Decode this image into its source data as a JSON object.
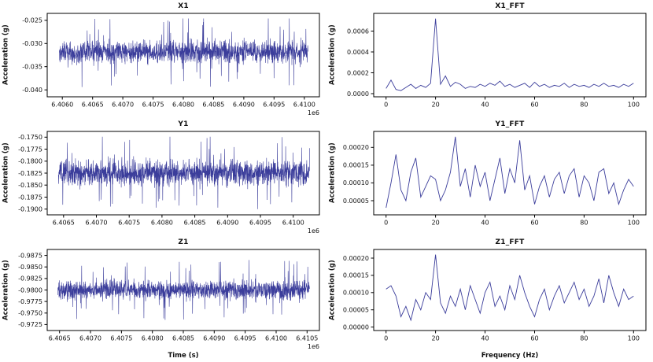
{
  "figure": {
    "background": "#ffffff",
    "line_color": "#3b3d9b",
    "text_color": "#111111"
  },
  "chart_data": [
    {
      "id": "x1",
      "type": "line",
      "title": "X1",
      "ylabel": "Acceleration (g)",
      "xlabel": "",
      "x_offset": "1e6",
      "color": "#3b3d9b",
      "line_width": 0.6,
      "xlim": [
        6405750,
        6410250
      ],
      "y_top": -0.0235,
      "y_bottom": -0.0415,
      "xticks": [
        6406000,
        6406500,
        6407000,
        6407500,
        6408000,
        6408500,
        6409000,
        6409500,
        6410000
      ],
      "xtick_labels": [
        "6.4060",
        "6.4065",
        "6.4070",
        "6.4075",
        "6.4080",
        "6.4085",
        "6.4090",
        "6.4095",
        "6.4100"
      ],
      "yticks": [
        -0.025,
        -0.03,
        -0.035,
        -0.04
      ],
      "ytick_labels": [
        "-0.025",
        "-0.030",
        "-0.035",
        "-0.040"
      ],
      "noise": {
        "seed": 101,
        "n": 1600,
        "x_start": 6405950,
        "x_end": 6410060,
        "mean": -0.0318,
        "spread": 0.0034,
        "spike_prob": 0.06,
        "spike": 0.0078,
        "clamp": [
          -0.0405,
          -0.0246
        ]
      }
    },
    {
      "id": "x1fft",
      "type": "line",
      "title": "X1_FFT",
      "ylabel": "Acceleration (g)",
      "xlabel": "",
      "x_offset": "",
      "color": "#3b3d9b",
      "line_width": 0.9,
      "xlim": [
        -5,
        105
      ],
      "y_top": 0.00077,
      "y_bottom": -3e-05,
      "xticks": [
        0,
        20,
        40,
        60,
        80,
        100
      ],
      "xtick_labels": [
        "0",
        "20",
        "40",
        "60",
        "80",
        "100"
      ],
      "yticks": [
        0.0,
        0.0002,
        0.0004,
        0.0006
      ],
      "ytick_labels": [
        "0.0000",
        "0.0002",
        "0.0004",
        "0.0006"
      ],
      "x": [
        0,
        2,
        4,
        6,
        8,
        10,
        12,
        14,
        16,
        18,
        20,
        22,
        24,
        26,
        28,
        30,
        32,
        34,
        36,
        38,
        40,
        42,
        44,
        46,
        48,
        50,
        52,
        54,
        56,
        58,
        60,
        62,
        64,
        66,
        68,
        70,
        72,
        74,
        76,
        78,
        80,
        82,
        84,
        86,
        88,
        90,
        92,
        94,
        96,
        98,
        100
      ],
      "y": [
        5e-05,
        0.00013,
        4e-05,
        3e-05,
        6e-05,
        9e-05,
        5e-05,
        8e-05,
        6e-05,
        0.0001,
        0.00072,
        9e-05,
        0.00017,
        7e-05,
        0.00011,
        9e-05,
        5e-05,
        7e-05,
        6e-05,
        9e-05,
        7e-05,
        0.0001,
        8e-05,
        0.00012,
        7e-05,
        9e-05,
        6e-05,
        8e-05,
        0.0001,
        6e-05,
        0.00011,
        7e-05,
        9e-05,
        6e-05,
        8e-05,
        7e-05,
        0.0001,
        6e-05,
        9e-05,
        7e-05,
        8e-05,
        6e-05,
        9e-05,
        7e-05,
        0.0001,
        7e-05,
        8e-05,
        6e-05,
        9e-05,
        7e-05,
        0.0001
      ]
    },
    {
      "id": "y1",
      "type": "line",
      "title": "Y1",
      "ylabel": "Acceleration (g)",
      "xlabel": "",
      "x_offset": "1e6",
      "color": "#3b3d9b",
      "line_width": 0.6,
      "xlim": [
        6406250,
        6410400
      ],
      "y_top": -0.1738,
      "y_bottom": -0.1912,
      "xticks": [
        6406500,
        6407000,
        6407500,
        6408000,
        6408500,
        6409000,
        6409500,
        6410000
      ],
      "xtick_labels": [
        "6.4065",
        "6.4070",
        "6.4075",
        "6.4080",
        "6.4085",
        "6.4090",
        "6.4095",
        "6.4100"
      ],
      "yticks": [
        -0.175,
        -0.1775,
        -0.18,
        -0.1825,
        -0.185,
        -0.1875,
        -0.19
      ],
      "ytick_labels": [
        "-0.1750",
        "-0.1775",
        "-0.1800",
        "-0.1825",
        "-0.1850",
        "-0.1875",
        "-0.1900"
      ],
      "noise": {
        "seed": 202,
        "n": 1600,
        "x_start": 6406420,
        "x_end": 6410250,
        "mean": -0.1824,
        "spread": 0.0038,
        "spike_prob": 0.06,
        "spike": 0.008,
        "clamp": [
          -0.1901,
          -0.1749
        ]
      }
    },
    {
      "id": "y1fft",
      "type": "line",
      "title": "Y1_FFT",
      "ylabel": "Acceleration (g)",
      "xlabel": "",
      "x_offset": "",
      "color": "#3b3d9b",
      "line_width": 0.9,
      "xlim": [
        -5,
        105
      ],
      "y_top": 0.000245,
      "y_bottom": 1e-05,
      "xticks": [
        0,
        20,
        40,
        60,
        80,
        100
      ],
      "xtick_labels": [
        "0",
        "20",
        "40",
        "60",
        "80",
        "100"
      ],
      "yticks": [
        5e-05,
        0.0001,
        0.00015,
        0.0002
      ],
      "ytick_labels": [
        "0.00005",
        "0.00010",
        "0.00015",
        "0.00020"
      ],
      "x": [
        0,
        2,
        4,
        6,
        8,
        10,
        12,
        14,
        16,
        18,
        20,
        22,
        24,
        26,
        28,
        30,
        32,
        34,
        36,
        38,
        40,
        42,
        44,
        46,
        48,
        50,
        52,
        54,
        56,
        58,
        60,
        62,
        64,
        66,
        68,
        70,
        72,
        74,
        76,
        78,
        80,
        82,
        84,
        86,
        88,
        90,
        92,
        94,
        96,
        98,
        100
      ],
      "y": [
        3e-05,
        0.0001,
        0.00018,
        8e-05,
        5e-05,
        0.00013,
        0.00017,
        6e-05,
        9e-05,
        0.00012,
        0.00011,
        5e-05,
        8e-05,
        0.00013,
        0.00023,
        9e-05,
        0.00014,
        6e-05,
        0.00015,
        9e-05,
        0.00013,
        5e-05,
        0.00011,
        0.00017,
        7e-05,
        0.00014,
        0.0001,
        0.00022,
        8e-05,
        0.00012,
        4e-05,
        9e-05,
        0.00012,
        6e-05,
        0.00011,
        0.00013,
        7e-05,
        0.00012,
        0.00014,
        6e-05,
        0.00012,
        0.0001,
        5e-05,
        0.00013,
        0.00014,
        7e-05,
        0.0001,
        4e-05,
        8e-05,
        0.00011,
        9e-05
      ]
    },
    {
      "id": "z1",
      "type": "line",
      "title": "Z1",
      "ylabel": "Acceleration (g)",
      "xlabel": "Time (s)",
      "x_offset": "1e6",
      "color": "#3b3d9b",
      "line_width": 0.6,
      "xlim": [
        6406300,
        6410700
      ],
      "y_top": -0.9888,
      "y_bottom": -0.9712,
      "xticks": [
        6406500,
        6407000,
        6407500,
        6408000,
        6408500,
        6409000,
        6409500,
        6410000,
        6410500
      ],
      "xtick_labels": [
        "6.4065",
        "6.4070",
        "6.4075",
        "6.4080",
        "6.4085",
        "6.4090",
        "6.4095",
        "6.4100",
        "6.4105"
      ],
      "yticks": [
        -0.9875,
        -0.985,
        -0.9825,
        -0.98,
        -0.9775,
        -0.975,
        -0.9725
      ],
      "ytick_labels": [
        "-0.9875",
        "-0.9850",
        "-0.9825",
        "-0.9800",
        "-0.9775",
        "-0.9750",
        "-0.9725"
      ],
      "noise": {
        "seed": 303,
        "n": 1600,
        "x_start": 6406470,
        "x_end": 6410540,
        "mean": -0.98,
        "spread": 0.0028,
        "spike_prob": 0.06,
        "spike": 0.0066,
        "clamp": [
          -0.9866,
          -0.9728
        ]
      }
    },
    {
      "id": "z1fft",
      "type": "line",
      "title": "Z1_FFT",
      "ylabel": "Acceleration (g)",
      "xlabel": "Frequency (Hz)",
      "x_offset": "",
      "color": "#3b3d9b",
      "line_width": 0.9,
      "xlim": [
        -5,
        105
      ],
      "y_top": 0.000225,
      "y_bottom": -1e-05,
      "xticks": [
        0,
        20,
        40,
        60,
        80,
        100
      ],
      "xtick_labels": [
        "0",
        "20",
        "40",
        "60",
        "80",
        "100"
      ],
      "yticks": [
        0.0,
        5e-05,
        0.0001,
        0.00015,
        0.0002
      ],
      "ytick_labels": [
        "0.00000",
        "0.00005",
        "0.00010",
        "0.00015",
        "0.00020"
      ],
      "x": [
        0,
        2,
        4,
        6,
        8,
        10,
        12,
        14,
        16,
        18,
        20,
        22,
        24,
        26,
        28,
        30,
        32,
        34,
        36,
        38,
        40,
        42,
        44,
        46,
        48,
        50,
        52,
        54,
        56,
        58,
        60,
        62,
        64,
        66,
        68,
        70,
        72,
        74,
        76,
        78,
        80,
        82,
        84,
        86,
        88,
        90,
        92,
        94,
        96,
        98,
        100
      ],
      "y": [
        0.00011,
        0.00012,
        9e-05,
        3e-05,
        6e-05,
        2e-05,
        8e-05,
        5e-05,
        0.0001,
        8e-05,
        0.00021,
        7e-05,
        4e-05,
        9e-05,
        6e-05,
        0.00011,
        5e-05,
        0.00012,
        8e-05,
        4e-05,
        0.0001,
        0.00013,
        6e-05,
        9e-05,
        5e-05,
        0.00012,
        8e-05,
        0.00015,
        0.0001,
        6e-05,
        3e-05,
        8e-05,
        0.00011,
        5e-05,
        9e-05,
        0.00012,
        7e-05,
        0.0001,
        0.00013,
        8e-05,
        0.00011,
        6e-05,
        9e-05,
        0.00014,
        7e-05,
        0.00015,
        0.0001,
        6e-05,
        0.00011,
        8e-05,
        9e-05
      ]
    }
  ]
}
